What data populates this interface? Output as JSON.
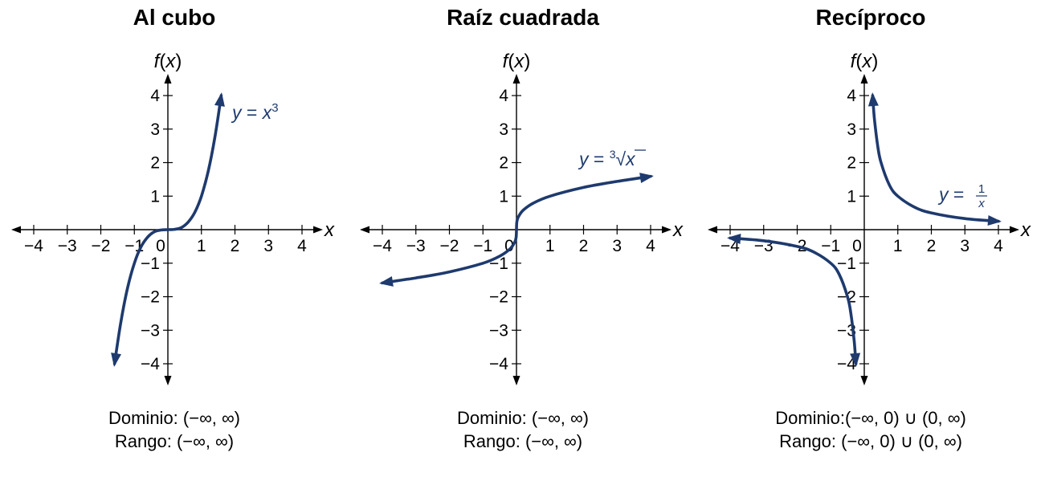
{
  "colors": {
    "curve": "#1e3a6e",
    "axis": "#000000"
  },
  "chart_data": [
    {
      "type": "line",
      "title": "Al cubo",
      "xlabel": "x",
      "ylabel": "f(x)",
      "xlim": [
        -4,
        4
      ],
      "ylim": [
        -4,
        4
      ],
      "x_ticks": [
        "−4",
        "−3",
        "−2",
        "−1",
        "0",
        "1",
        "2",
        "3",
        "4"
      ],
      "y_ticks": [
        "−4",
        "−3",
        "−2",
        "−1",
        "1",
        "2",
        "3",
        "4"
      ],
      "grid": false,
      "function": "x^3",
      "series": [
        {
          "label_parts": [
            "y = ",
            "x",
            "3"
          ],
          "x": [
            -1.59,
            -1.4,
            -1.2,
            -1.0,
            -0.8,
            -0.6,
            -0.4,
            -0.2,
            0.0,
            0.2,
            0.4,
            0.6,
            0.8,
            1.0,
            1.2,
            1.4,
            1.59
          ],
          "y": [
            -4.0,
            -2.74,
            -1.73,
            -1.0,
            -0.51,
            -0.22,
            -0.06,
            -0.01,
            0.0,
            0.01,
            0.06,
            0.22,
            0.51,
            1.0,
            1.73,
            2.74,
            4.0
          ]
        }
      ],
      "domain_text": "Dominio: (−∞, ∞)",
      "range_text": "Rango: (−∞, ∞)"
    },
    {
      "type": "line",
      "title": "Raíz cuadrada",
      "xlabel": "x",
      "ylabel": "f(x)",
      "xlim": [
        -4,
        4
      ],
      "ylim": [
        -4,
        4
      ],
      "x_ticks": [
        "−4",
        "−3",
        "−2",
        "−1",
        "0",
        "1",
        "2",
        "3",
        "4"
      ],
      "y_ticks": [
        "−4",
        "−3",
        "−2",
        "−1",
        "1",
        "2",
        "3",
        "4"
      ],
      "grid": false,
      "function": "cbrt(x)",
      "series": [
        {
          "label_parts": [
            "y = ",
            "3",
            "x"
          ],
          "x": [
            -4.0,
            -3.0,
            -2.0,
            -1.0,
            -0.5,
            -0.2,
            -0.05,
            -0.01,
            0.0,
            0.01,
            0.05,
            0.2,
            0.5,
            1.0,
            2.0,
            3.0,
            4.0
          ],
          "y": [
            -1.59,
            -1.44,
            -1.26,
            -1.0,
            -0.79,
            -0.58,
            -0.37,
            -0.22,
            0.0,
            0.22,
            0.37,
            0.58,
            0.79,
            1.0,
            1.26,
            1.44,
            1.59
          ]
        }
      ],
      "domain_text": "Dominio: (−∞, ∞)",
      "range_text": "Rango: (−∞, ∞)"
    },
    {
      "type": "line",
      "title": "Recíproco",
      "xlabel": "x",
      "ylabel": "f(x)",
      "xlim": [
        -4,
        4
      ],
      "ylim": [
        -4,
        4
      ],
      "x_ticks": [
        "−4",
        "−3",
        "−2",
        "−1",
        "0",
        "1",
        "2",
        "3",
        "4"
      ],
      "y_ticks": [
        "−4",
        "−3",
        "−2",
        "−1",
        "1",
        "2",
        "3",
        "4"
      ],
      "grid": false,
      "function": "1/x",
      "series": [
        {
          "label_parts": [
            "y = ",
            "1",
            "x"
          ],
          "x": [
            0.25,
            0.3,
            0.4,
            0.5,
            0.75,
            1.0,
            1.5,
            2.0,
            3.0,
            4.0
          ],
          "y": [
            4.0,
            3.33,
            2.5,
            2.0,
            1.33,
            1.0,
            0.67,
            0.5,
            0.33,
            0.25
          ]
        },
        {
          "label_parts": [],
          "x": [
            -4.0,
            -3.0,
            -2.0,
            -1.5,
            -1.0,
            -0.75,
            -0.5,
            -0.4,
            -0.3,
            -0.25
          ],
          "y": [
            -0.25,
            -0.33,
            -0.5,
            -0.67,
            -1.0,
            -1.33,
            -2.0,
            -2.5,
            -3.33,
            -4.0
          ]
        }
      ],
      "domain_text": "Dominio:(−∞, 0) ∪ (0, ∞)",
      "range_text": "Rango: (−∞, 0) ∪ (0, ∞)"
    }
  ]
}
